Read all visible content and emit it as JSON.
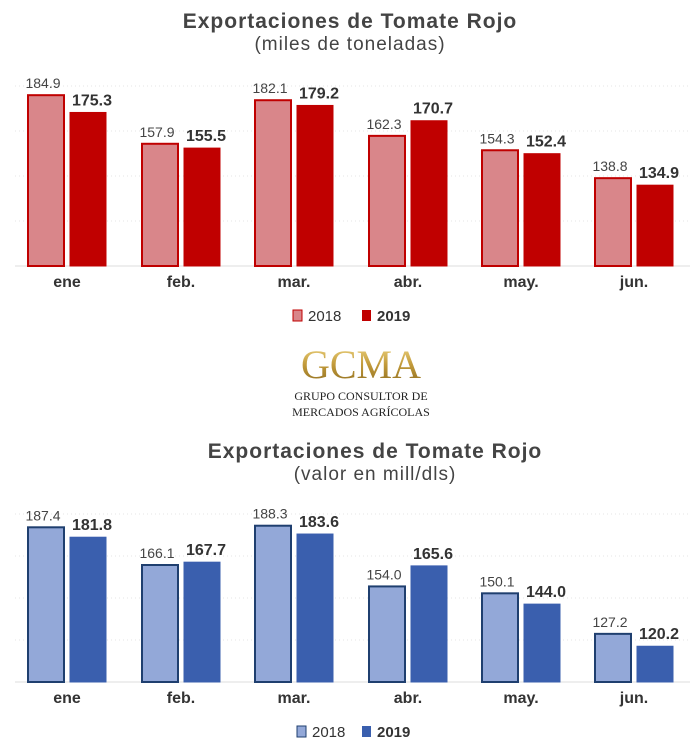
{
  "colors": {
    "red2018": "#d9868a",
    "red2018_border": "#c00000",
    "red2019": "#c00000",
    "blue2018": "#93a8d8",
    "blue2018_border": "#1f3f6f",
    "blue2019": "#3a5fae"
  },
  "logo": {
    "name": "GCMA",
    "line1": "GRUPO CONSULTOR DE",
    "line2": "MERCADOS AGRÍCOLAS"
  },
  "chart_data": [
    {
      "type": "bar",
      "title": "Exportaciones de Tomate Rojo",
      "subtitle": "(miles de toneladas)",
      "categories": [
        "ene",
        "feb.",
        "mar.",
        "abr.",
        "may.",
        "jun."
      ],
      "series": [
        {
          "name": "2018",
          "values": [
            184.9,
            157.9,
            182.1,
            162.3,
            154.3,
            138.8
          ],
          "labels": [
            "184.9",
            "157.9",
            "182.1",
            "162.3",
            "154.3",
            "138.8"
          ]
        },
        {
          "name": "2019",
          "values": [
            175.3,
            155.5,
            179.2,
            170.7,
            152.4,
            134.9
          ],
          "labels": [
            "175.3",
            "155.5",
            "179.2",
            "170.7",
            "152.4",
            "134.9"
          ]
        }
      ],
      "ylim": [
        90,
        190
      ],
      "legend": "bottom",
      "grid": true
    },
    {
      "type": "bar",
      "title": "Exportaciones de Tomate Rojo",
      "subtitle": "(valor en mill/dls)",
      "categories": [
        "ene",
        "feb.",
        "mar.",
        "abr.",
        "may.",
        "jun."
      ],
      "series": [
        {
          "name": "2018",
          "values": [
            187.4,
            166.1,
            188.3,
            154.0,
            150.1,
            127.2
          ],
          "labels": [
            "187.4",
            "166.1",
            "188.3",
            "154.0",
            "150.1",
            "127.2"
          ]
        },
        {
          "name": "2019",
          "values": [
            181.8,
            167.7,
            183.6,
            165.6,
            144.0,
            120.2
          ],
          "labels": [
            "181.8",
            "167.7",
            "183.6",
            "165.6",
            "144.0",
            "120.2"
          ]
        }
      ],
      "ylim": [
        100,
        190
      ],
      "legend": "bottom",
      "grid": true
    }
  ]
}
